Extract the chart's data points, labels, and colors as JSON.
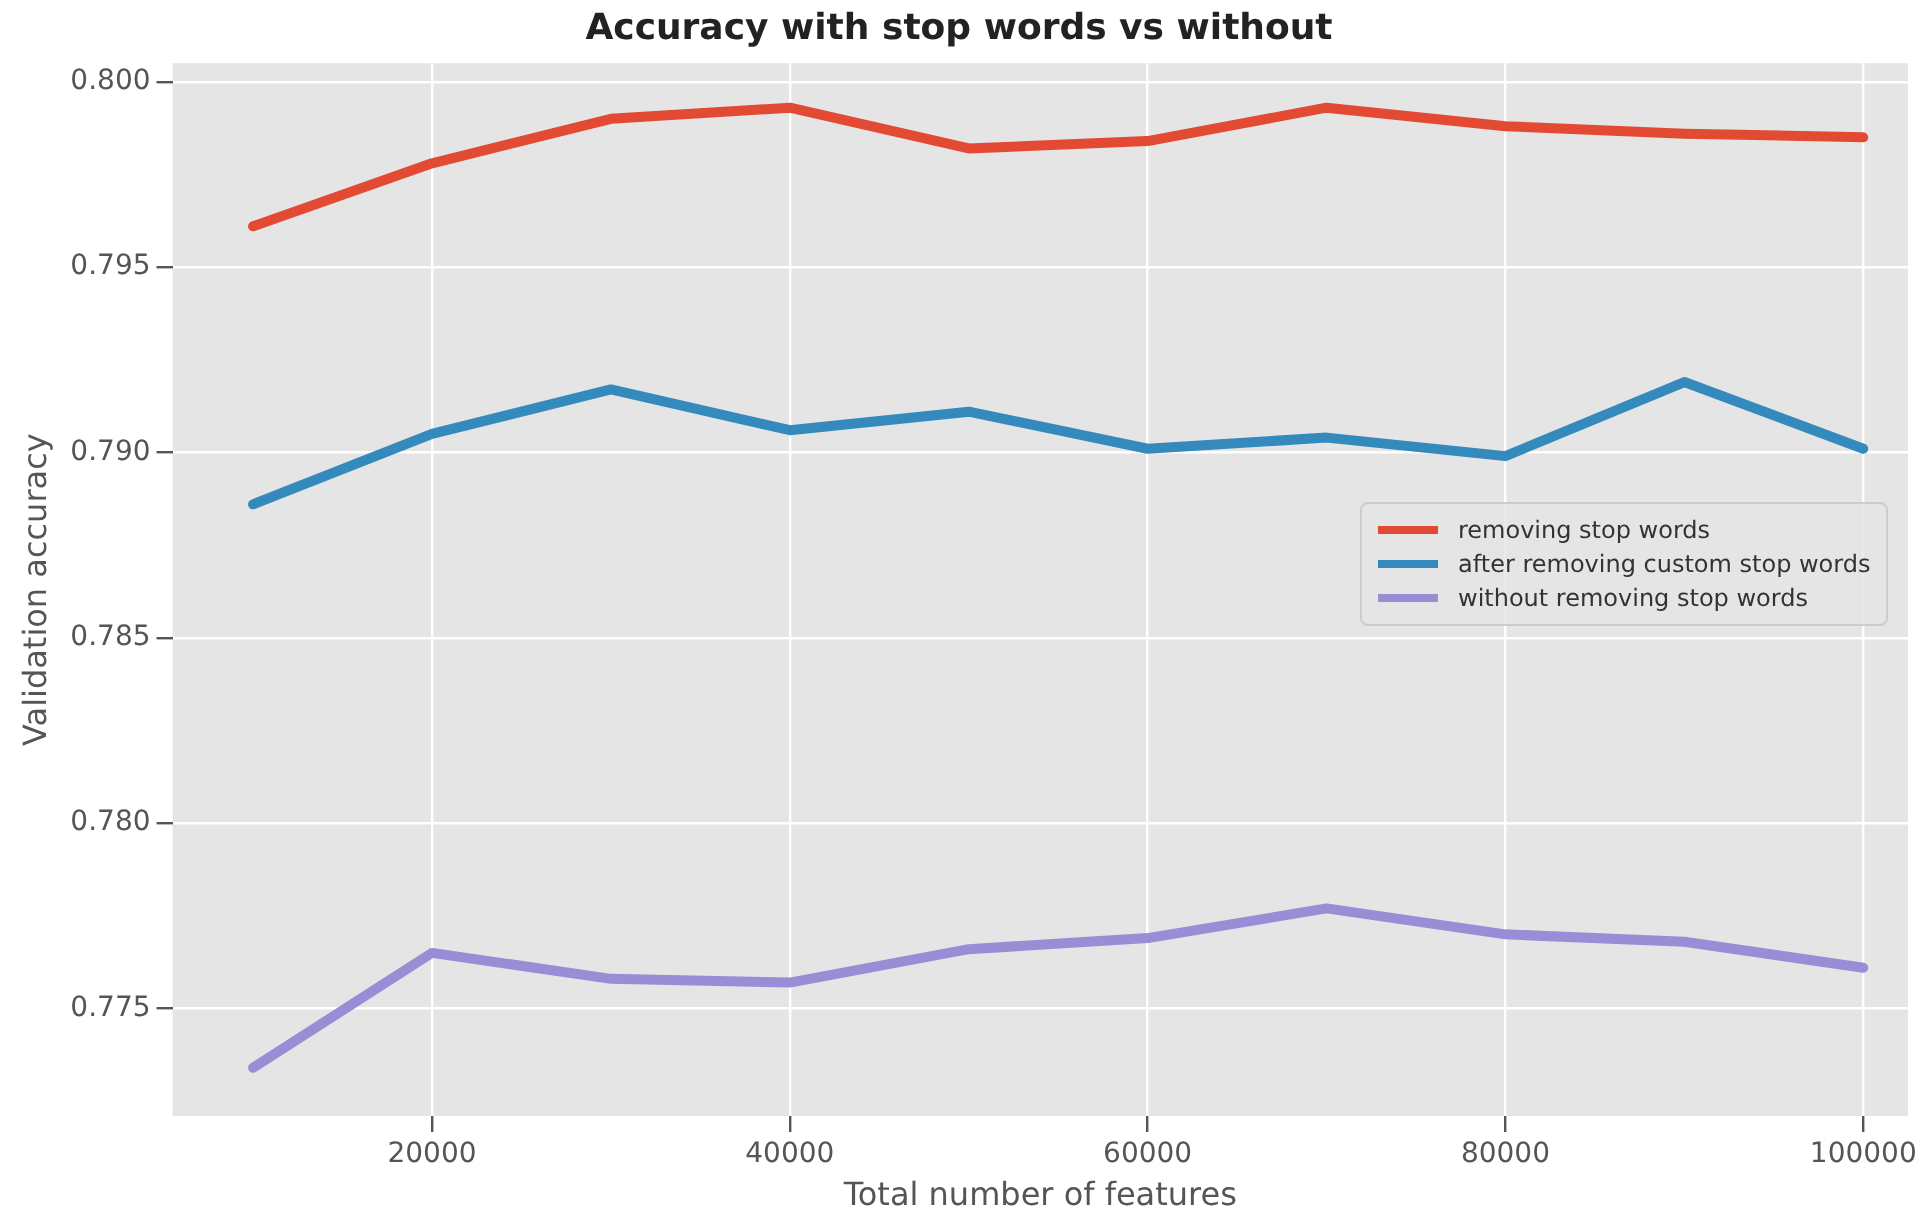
{
  "chart_data": {
    "type": "line",
    "title": "Accuracy with stop words vs without",
    "xlabel": "Total number of features",
    "ylabel": "Validation accuracy",
    "x": [
      10000,
      20000,
      30000,
      40000,
      50000,
      60000,
      70000,
      80000,
      90000,
      100000
    ],
    "series": [
      {
        "name": "removing stop words",
        "color": "#e24a33",
        "values": [
          0.7961,
          0.7978,
          0.799,
          0.7993,
          0.7982,
          0.7984,
          0.7993,
          0.7988,
          0.7986,
          0.7985
        ]
      },
      {
        "name": "after removing custom stop words",
        "color": "#348abd",
        "values": [
          0.7886,
          0.7905,
          0.7917,
          0.7906,
          0.7911,
          0.7901,
          0.7904,
          0.7899,
          0.7919,
          0.7901
        ]
      },
      {
        "name": "without removing stop words",
        "color": "#988ed5",
        "values": [
          0.7734,
          0.7765,
          0.7758,
          0.7757,
          0.7766,
          0.7769,
          0.7777,
          0.777,
          0.7768,
          0.7761
        ]
      }
    ],
    "xlim": [
      5500,
      102500
    ],
    "xticks": [
      20000,
      40000,
      60000,
      80000,
      100000
    ],
    "ylim": [
      0.7721,
      0.8005
    ],
    "yticks": [
      0.775,
      {
        "value": 0.78,
        "label": "0.780"
      },
      0.785,
      {
        "value": 0.79,
        "label": "0.790"
      },
      0.795,
      {
        "value": 0.8,
        "label": "0.800"
      }
    ],
    "grid": true,
    "legend": "center right",
    "marker": "none",
    "line_style": "solid"
  }
}
